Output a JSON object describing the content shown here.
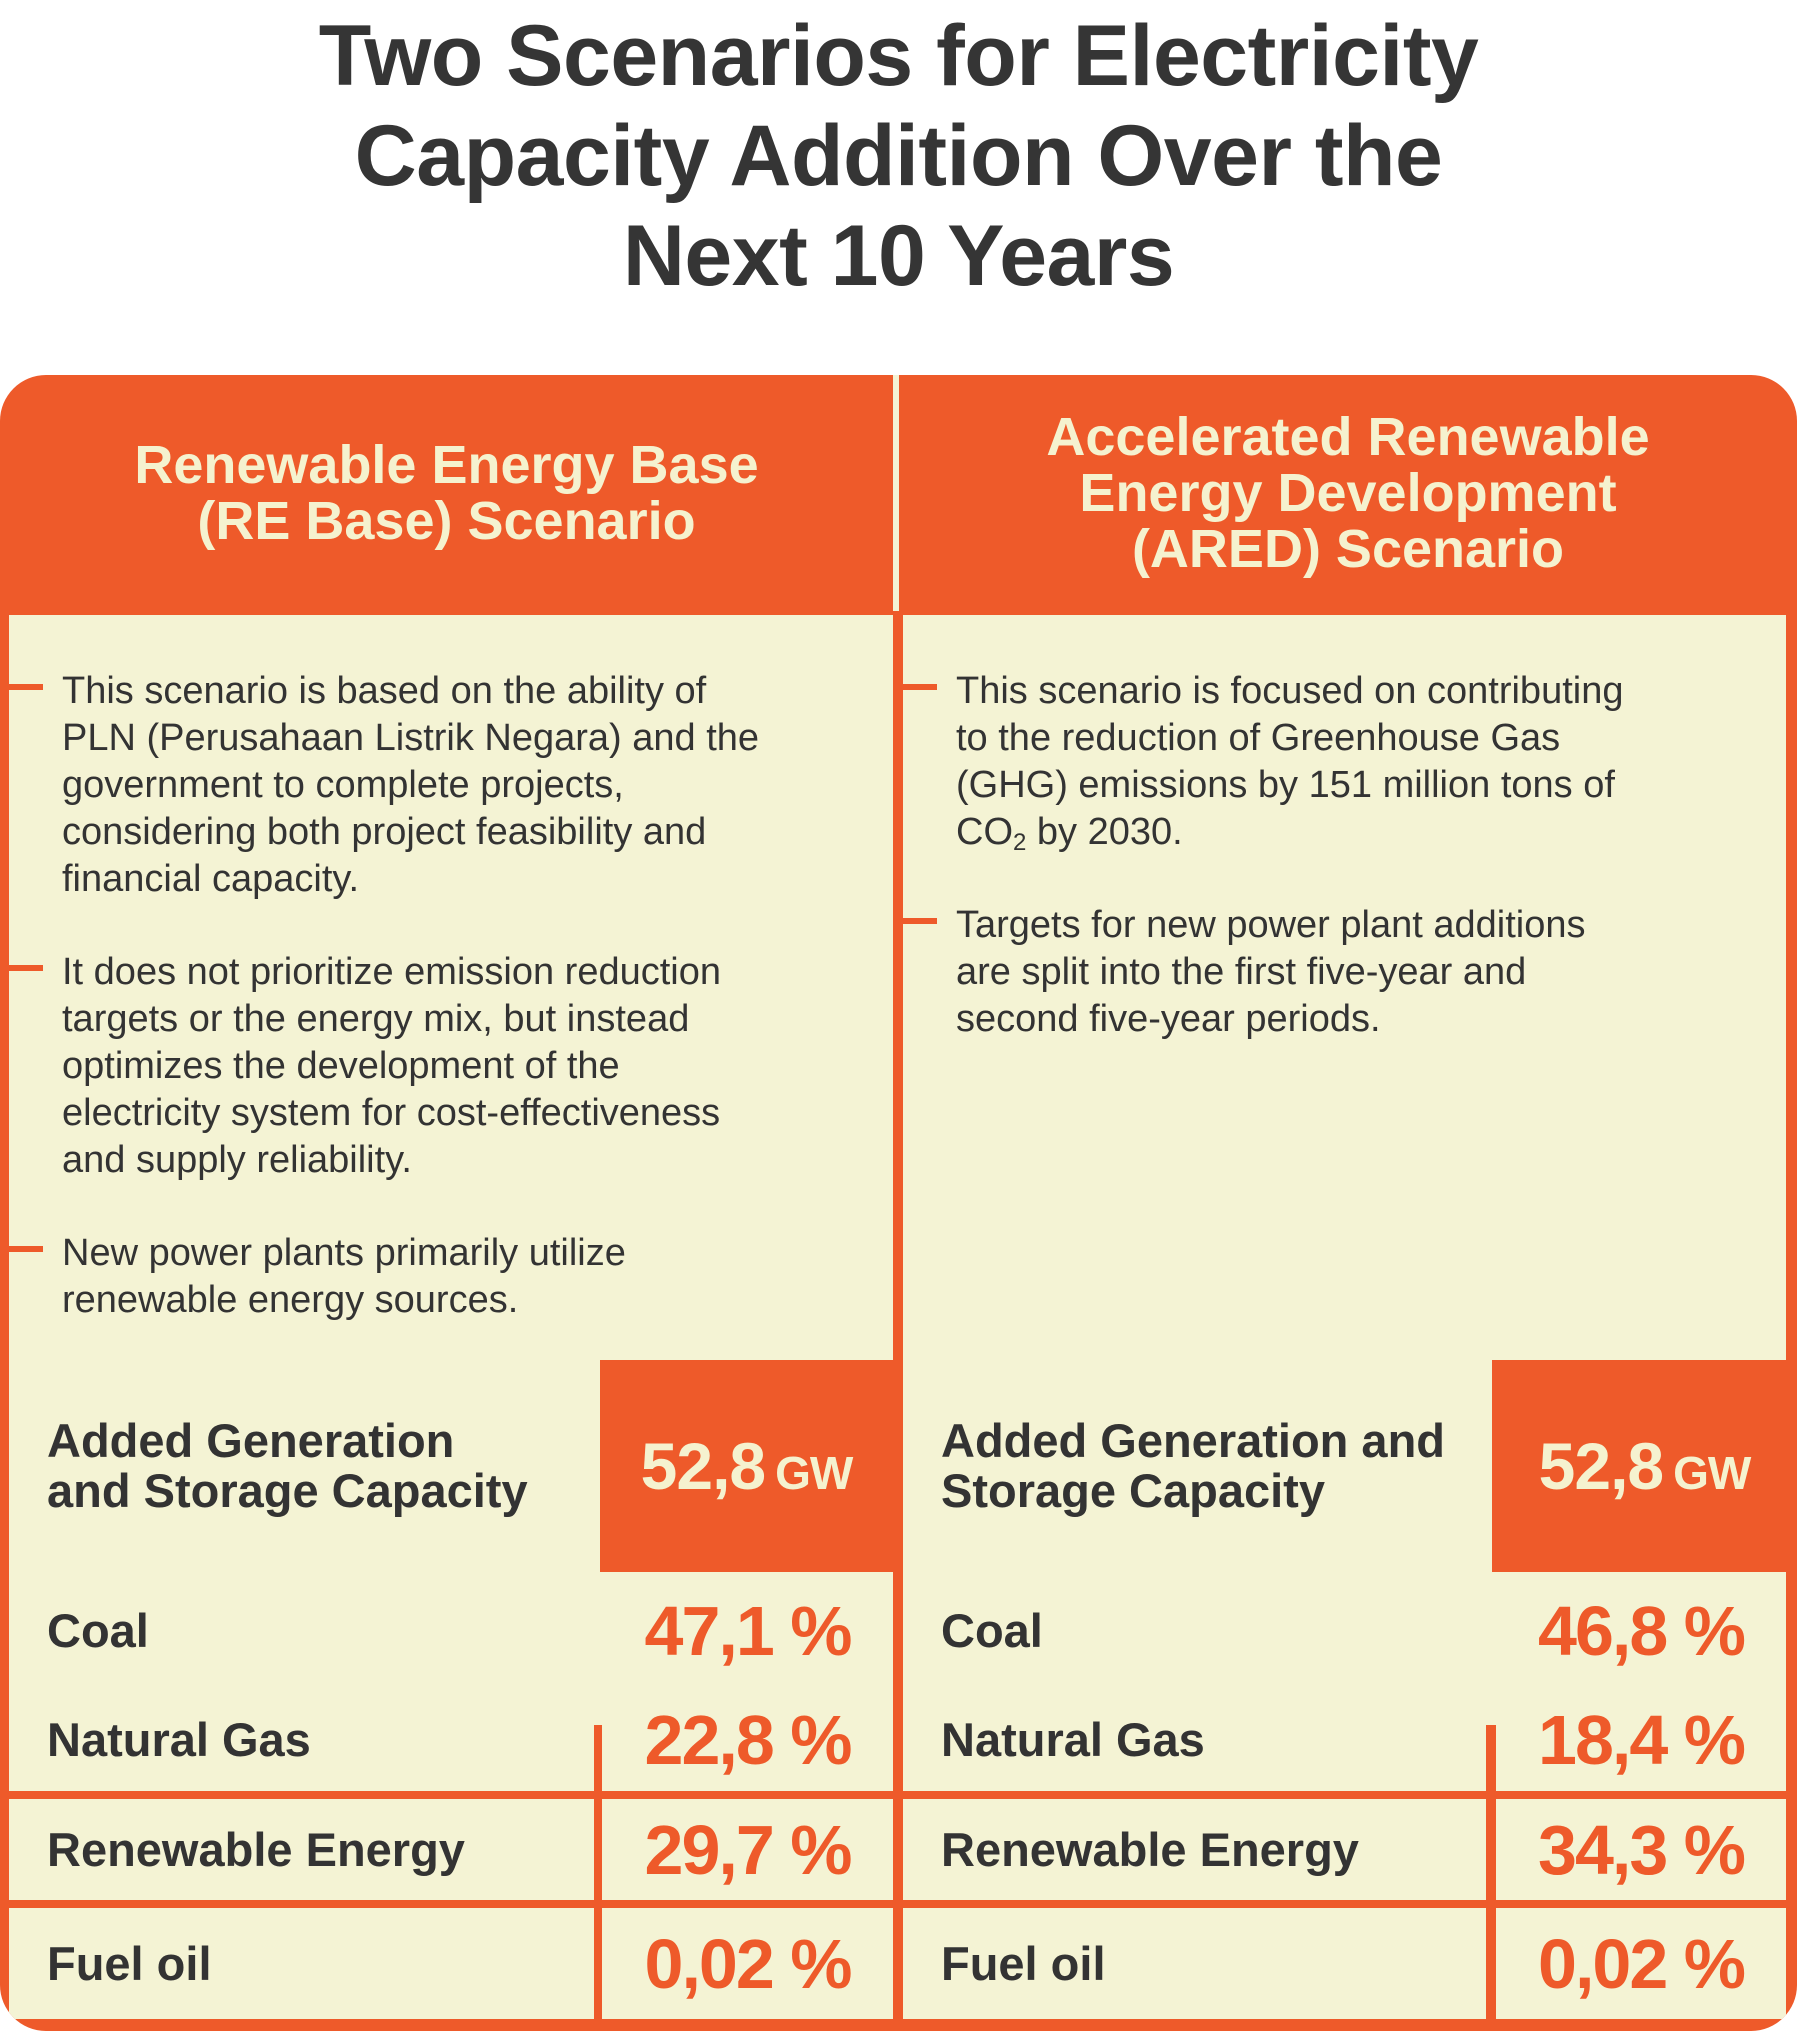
{
  "title": {
    "lines": [
      "Two Scenarios for Electricity",
      "Capacity Addition Over the",
      "Next 10 Years"
    ]
  },
  "scenarios": [
    {
      "header_lines": [
        "Renewable Energy Base",
        "(RE Base) Scenario"
      ],
      "bullets": [
        [
          "This scenario is based on the ability of",
          "PLN (Perusahaan Listrik Negara) and the",
          "government to complete projects,",
          "considering both project feasibility and",
          "financial capacity."
        ],
        [
          "It does not prioritize emission reduction",
          "targets or the energy mix, but instead",
          "optimizes the development of the",
          "electricity system for cost-effectiveness",
          "and supply reliability."
        ],
        [
          "New power plants primarily utilize",
          "renewable energy sources."
        ]
      ],
      "capacity_label_lines": [
        "Added Generation",
        "and Storage Capacity"
      ],
      "capacity_value": "52,8",
      "capacity_unit": "GW",
      "mix": [
        {
          "label": "Coal",
          "value": "47,1 %"
        },
        {
          "label": "Natural Gas",
          "value": "22,8 %"
        },
        {
          "label": "Renewable Energy",
          "value": "29,7 %"
        },
        {
          "label": "Fuel oil",
          "value": "0,02 %"
        }
      ]
    },
    {
      "header_lines": [
        "Accelerated Renewable",
        "Energy Development",
        "(ARED) Scenario"
      ],
      "bullets": [
        [
          "This scenario is focused on contributing",
          "to the reduction of Greenhouse Gas",
          "(GHG) emissions by 151 million tons of"
        ],
        [
          "Targets for new power plant additions",
          "are split into the first five-year and",
          "second five-year periods."
        ]
      ],
      "co2_line": {
        "pre": "CO",
        "sub": "2",
        "post": " by 2030."
      },
      "capacity_label_lines": [
        "Added Generation and",
        "Storage Capacity"
      ],
      "capacity_value": "52,8",
      "capacity_unit": "GW",
      "mix": [
        {
          "label": "Coal",
          "value": "46,8 %"
        },
        {
          "label": "Natural Gas",
          "value": "18,4 %"
        },
        {
          "label": "Renewable Energy",
          "value": "34,3 %"
        },
        {
          "label": "Fuel oil",
          "value": "0,02 %"
        }
      ]
    }
  ],
  "colors": {
    "accent": "#ee5a2a",
    "cream": "#f4f3d4",
    "text": "#333333"
  }
}
